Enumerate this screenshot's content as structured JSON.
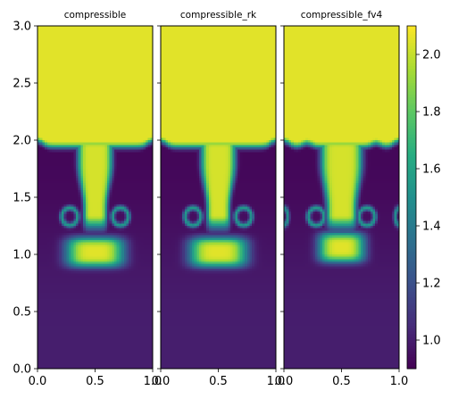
{
  "chart_data": {
    "type": "heatmap",
    "colormap": "viridis",
    "panels": [
      {
        "title": "compressible",
        "scheme": "standard"
      },
      {
        "title": "compressible_rk",
        "scheme": "standard"
      },
      {
        "title": "compressible_fv4",
        "scheme": "fv4"
      }
    ],
    "xlim": [
      0.0,
      1.0
    ],
    "ylim": [
      0.0,
      3.0
    ],
    "x_ticks": [
      "0.0",
      "0.5",
      "1.0"
    ],
    "y_ticks": [
      "0.0",
      "0.5",
      "1.0",
      "1.5",
      "2.0",
      "2.5",
      "3.0"
    ],
    "y_tick_values": [
      0.0,
      0.5,
      1.0,
      1.5,
      2.0,
      2.5,
      3.0
    ],
    "colorbar": {
      "range": [
        0.9,
        2.1
      ],
      "ticks": [
        "1.0",
        "1.2",
        "1.4",
        "1.6",
        "1.8",
        "2.0"
      ],
      "tick_values": [
        1.0,
        1.2,
        1.4,
        1.6,
        1.8,
        2.0
      ]
    },
    "field": {
      "heavy_density_approx": 2.05,
      "light_density_bottom_approx": 1.0,
      "light_density_interface_approx": 0.92,
      "interface_height": 1.93,
      "plume_cap_center_y": 1.02,
      "vortex_center_x": [
        0.28,
        0.72
      ],
      "vortex_center_y": 1.33
    }
  }
}
